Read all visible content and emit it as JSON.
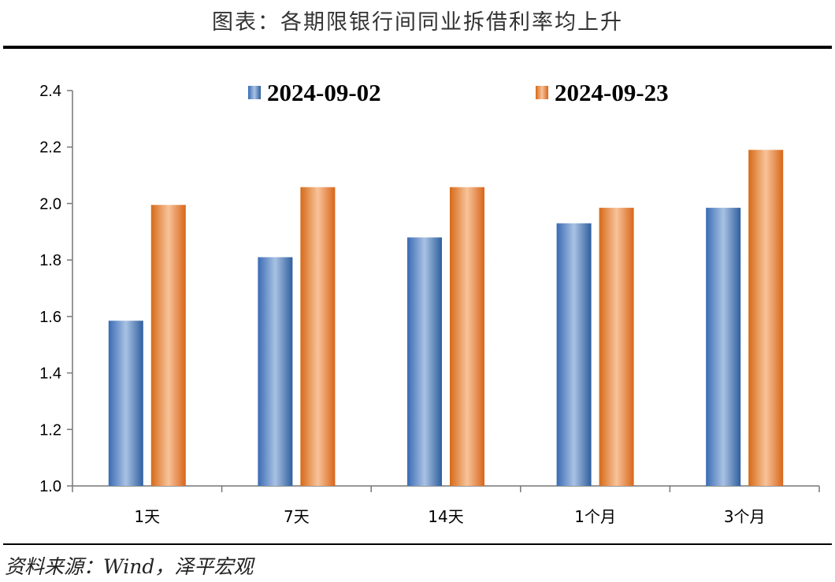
{
  "title": "图表：各期限银行间同业拆借利率均上升",
  "source": "资料来源：Wind，泽平宏观",
  "chart_data": {
    "type": "bar",
    "title": "",
    "xlabel": "",
    "ylabel": "",
    "categories": [
      "1天",
      "7天",
      "14天",
      "1个月",
      "3个月"
    ],
    "series": [
      {
        "name": "2024-09-02",
        "color": "#4f81bd",
        "values": [
          1.585,
          1.81,
          1.88,
          1.93,
          1.985
        ]
      },
      {
        "name": "2024-09-23",
        "color": "#e67e22",
        "values": [
          1.995,
          2.058,
          2.058,
          1.985,
          2.19
        ]
      }
    ],
    "ylim": [
      1.0,
      2.4
    ],
    "yticks": [
      "1.0",
      "1.2",
      "1.4",
      "1.6",
      "1.8",
      "2.0",
      "2.2",
      "2.4"
    ],
    "grid": false,
    "legend": "top"
  }
}
